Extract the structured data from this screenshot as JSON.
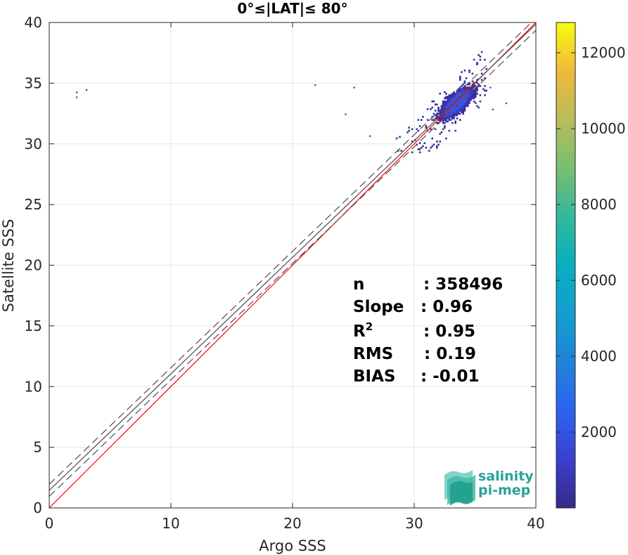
{
  "chart_data": {
    "type": "heatmap",
    "title": "0°≤|LAT|≤ 80°",
    "xlabel": "Argo SSS",
    "ylabel": "Satellite SSS",
    "xlim": [
      0,
      40
    ],
    "ylim": [
      0,
      40
    ],
    "xticks": [
      "0",
      "10",
      "20",
      "30",
      "40"
    ],
    "yticks": [
      "0",
      "5",
      "10",
      "15",
      "20",
      "25",
      "30",
      "35",
      "40"
    ],
    "grid": true,
    "colorbar": {
      "range": [
        0,
        12800
      ],
      "ticks": [
        "2000",
        "4000",
        "6000",
        "8000",
        "10000",
        "12000"
      ],
      "tick_values": [
        2000,
        4000,
        6000,
        8000,
        10000,
        12000
      ],
      "colormap": "parula"
    },
    "density_cloud": {
      "x_range": [
        30,
        36
      ],
      "y_range": [
        29.5,
        37.8
      ],
      "center": [
        33.5,
        33.4
      ],
      "outliers": [
        {
          "x": 2.2,
          "y": 34.3
        },
        {
          "x": 2.2,
          "y": 33.9
        },
        {
          "x": 3.0,
          "y": 34.5
        },
        {
          "x": 21.8,
          "y": 34.9
        },
        {
          "x": 25.0,
          "y": 34.7
        },
        {
          "x": 24.3,
          "y": 32.5
        },
        {
          "x": 26.3,
          "y": 30.7
        },
        {
          "x": 36.2,
          "y": 34.7
        },
        {
          "x": 37.5,
          "y": 33.4
        },
        {
          "x": 36.4,
          "y": 32.9
        }
      ]
    },
    "lines": [
      {
        "name": "one-to-one",
        "color": "#ff0000",
        "style": "solid",
        "points": [
          [
            0,
            0
          ],
          [
            40,
            40
          ]
        ]
      },
      {
        "name": "regression",
        "color": "#4d4d4d",
        "style": "solid",
        "points": [
          [
            0,
            1.45
          ],
          [
            40,
            39.85
          ]
        ]
      },
      {
        "name": "upper-bound",
        "color": "#4d4d4d",
        "style": "dashed",
        "points": [
          [
            0,
            1.95
          ],
          [
            40,
            40.35
          ]
        ]
      },
      {
        "name": "lower-bound",
        "color": "#4d4d4d",
        "style": "dashed",
        "points": [
          [
            0,
            0.95
          ],
          [
            40,
            39.35
          ]
        ]
      }
    ],
    "stats": [
      {
        "label": "n",
        "value": ": 358496"
      },
      {
        "label": "Slope",
        "value": ": 0.96"
      },
      {
        "label": "R",
        "sup": "2",
        "value": ": 0.95"
      },
      {
        "label": "RMS",
        "value": ": 0.19"
      },
      {
        "label": "BIAS",
        "value": ": -0.01"
      }
    ]
  },
  "logo": {
    "line1": "salinity",
    "line2": "pi-mep",
    "color": "#2aa198"
  }
}
